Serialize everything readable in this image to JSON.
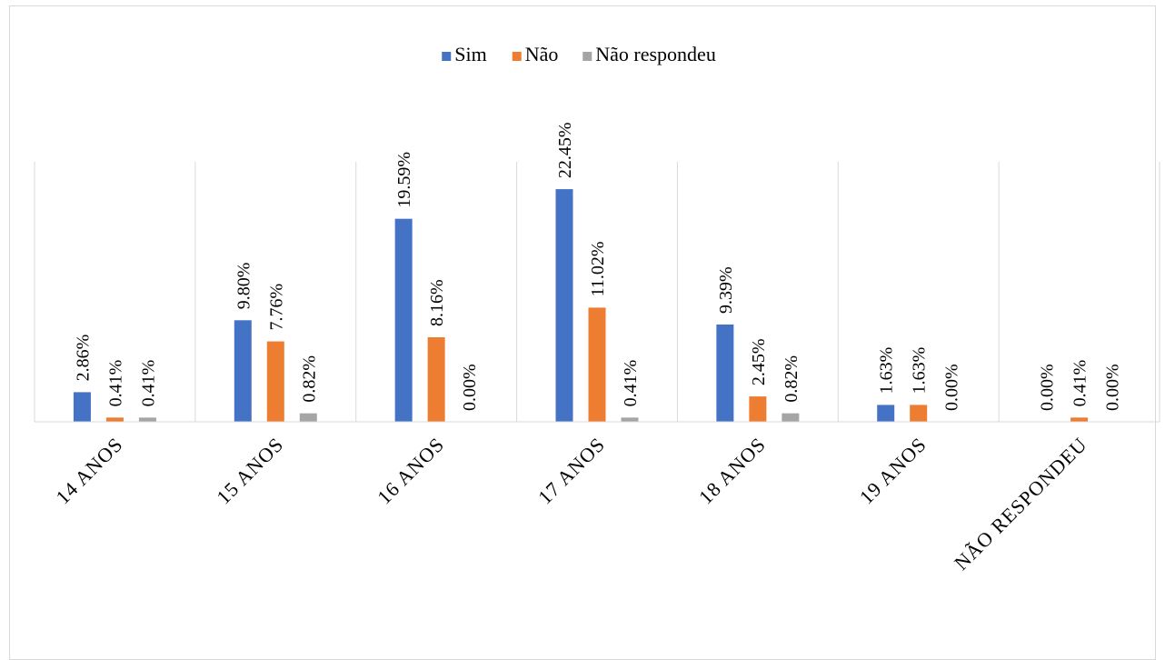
{
  "chart_data": {
    "type": "bar",
    "categories": [
      "14 ANOS",
      "15 ANOS",
      "16 ANOS",
      "17 ANOS",
      "18 ANOS",
      "19 ANOS",
      "NÃO RESPONDEU"
    ],
    "series": [
      {
        "name": "Sim",
        "color": "#4472c4",
        "values": [
          2.86,
          9.8,
          19.59,
          22.45,
          9.39,
          1.63,
          0.0
        ],
        "labels": [
          "2.86%",
          "9.80%",
          "19.59%",
          "22.45%",
          "9.39%",
          "1.63%",
          "0.00%"
        ]
      },
      {
        "name": "Não",
        "color": "#ed7d31",
        "values": [
          0.41,
          7.76,
          8.16,
          11.02,
          2.45,
          1.63,
          0.41
        ],
        "labels": [
          "0.41%",
          "7.76%",
          "8.16%",
          "11.02%",
          "2.45%",
          "1.63%",
          "0.41%"
        ]
      },
      {
        "name": "Não respondeu",
        "color": "#a5a5a5",
        "values": [
          0.41,
          0.82,
          0.0,
          0.41,
          0.82,
          0.0,
          0.0
        ],
        "labels": [
          "0.41%",
          "0.82%",
          "0.00%",
          "0.41%",
          "0.82%",
          "0.00%",
          "0.00%"
        ]
      }
    ],
    "title": "",
    "xlabel": "",
    "ylabel": "",
    "ylim": [
      0,
      25
    ],
    "grid": "vertical category separators",
    "legend": "top-center"
  }
}
